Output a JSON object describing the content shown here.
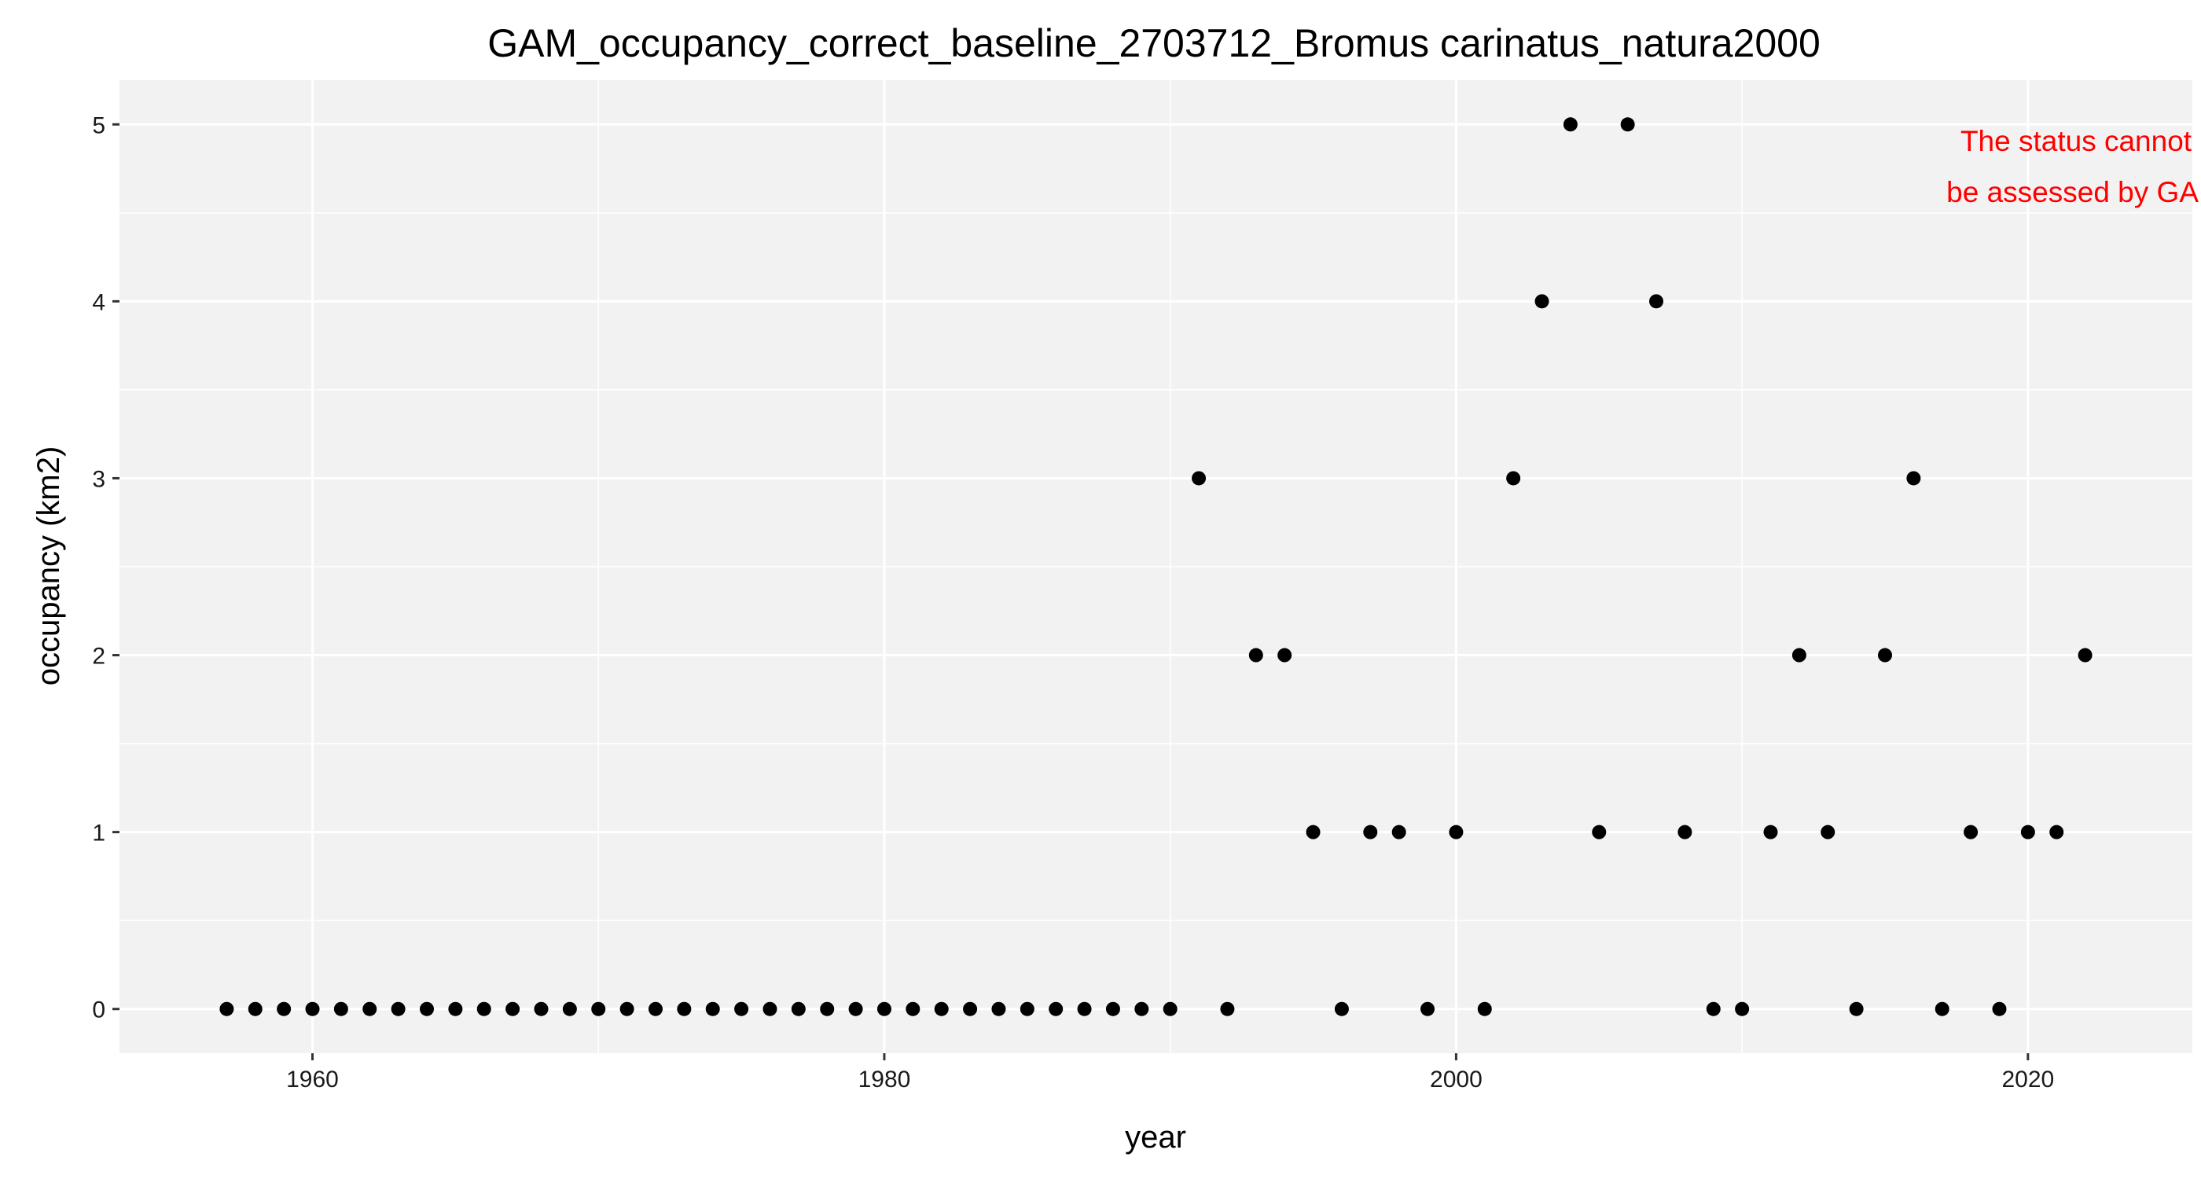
{
  "chart_data": {
    "type": "scatter",
    "title": "GAM_occupancy_correct_baseline_2703712_Bromus carinatus_natura2000",
    "xlabel": "year",
    "ylabel": "occupancy (km2)",
    "xlim": [
      1953.25,
      2025.75
    ],
    "ylim": [
      -0.25,
      5.25
    ],
    "x_ticks": [
      1960,
      1980,
      2000,
      2020
    ],
    "y_ticks": [
      0,
      1,
      2,
      3,
      4,
      5
    ],
    "grid": true,
    "annotation": {
      "lines": [
        "The status cannot",
        "be assessed by GAM"
      ],
      "color": "#ff0000",
      "position": "top-right"
    },
    "colors": {
      "panel": "#f2f2f2",
      "grid": "#ffffff",
      "point": "#000000",
      "tick": "#333333"
    },
    "x": [
      1957,
      1958,
      1959,
      1960,
      1961,
      1962,
      1963,
      1964,
      1965,
      1966,
      1967,
      1968,
      1969,
      1970,
      1971,
      1972,
      1973,
      1974,
      1975,
      1976,
      1977,
      1978,
      1979,
      1980,
      1981,
      1982,
      1983,
      1984,
      1985,
      1986,
      1987,
      1988,
      1989,
      1990,
      1991,
      1992,
      1993,
      1994,
      1995,
      1996,
      1997,
      1998,
      1999,
      2000,
      2001,
      2002,
      2003,
      2004,
      2005,
      2006,
      2007,
      2008,
      2009,
      2010,
      2011,
      2012,
      2013,
      2014,
      2015,
      2016,
      2017,
      2018,
      2019,
      2020,
      2021,
      2022
    ],
    "y": [
      0,
      0,
      0,
      0,
      0,
      0,
      0,
      0,
      0,
      0,
      0,
      0,
      0,
      0,
      0,
      0,
      0,
      0,
      0,
      0,
      0,
      0,
      0,
      0,
      0,
      0,
      0,
      0,
      0,
      0,
      0,
      0,
      0,
      0,
      3,
      0,
      2,
      2,
      1,
      0,
      1,
      1,
      0,
      1,
      0,
      3,
      4,
      5,
      1,
      5,
      4,
      1,
      0,
      0,
      1,
      2,
      1,
      0,
      2,
      3,
      0,
      1,
      0,
      1,
      1,
      2
    ]
  }
}
